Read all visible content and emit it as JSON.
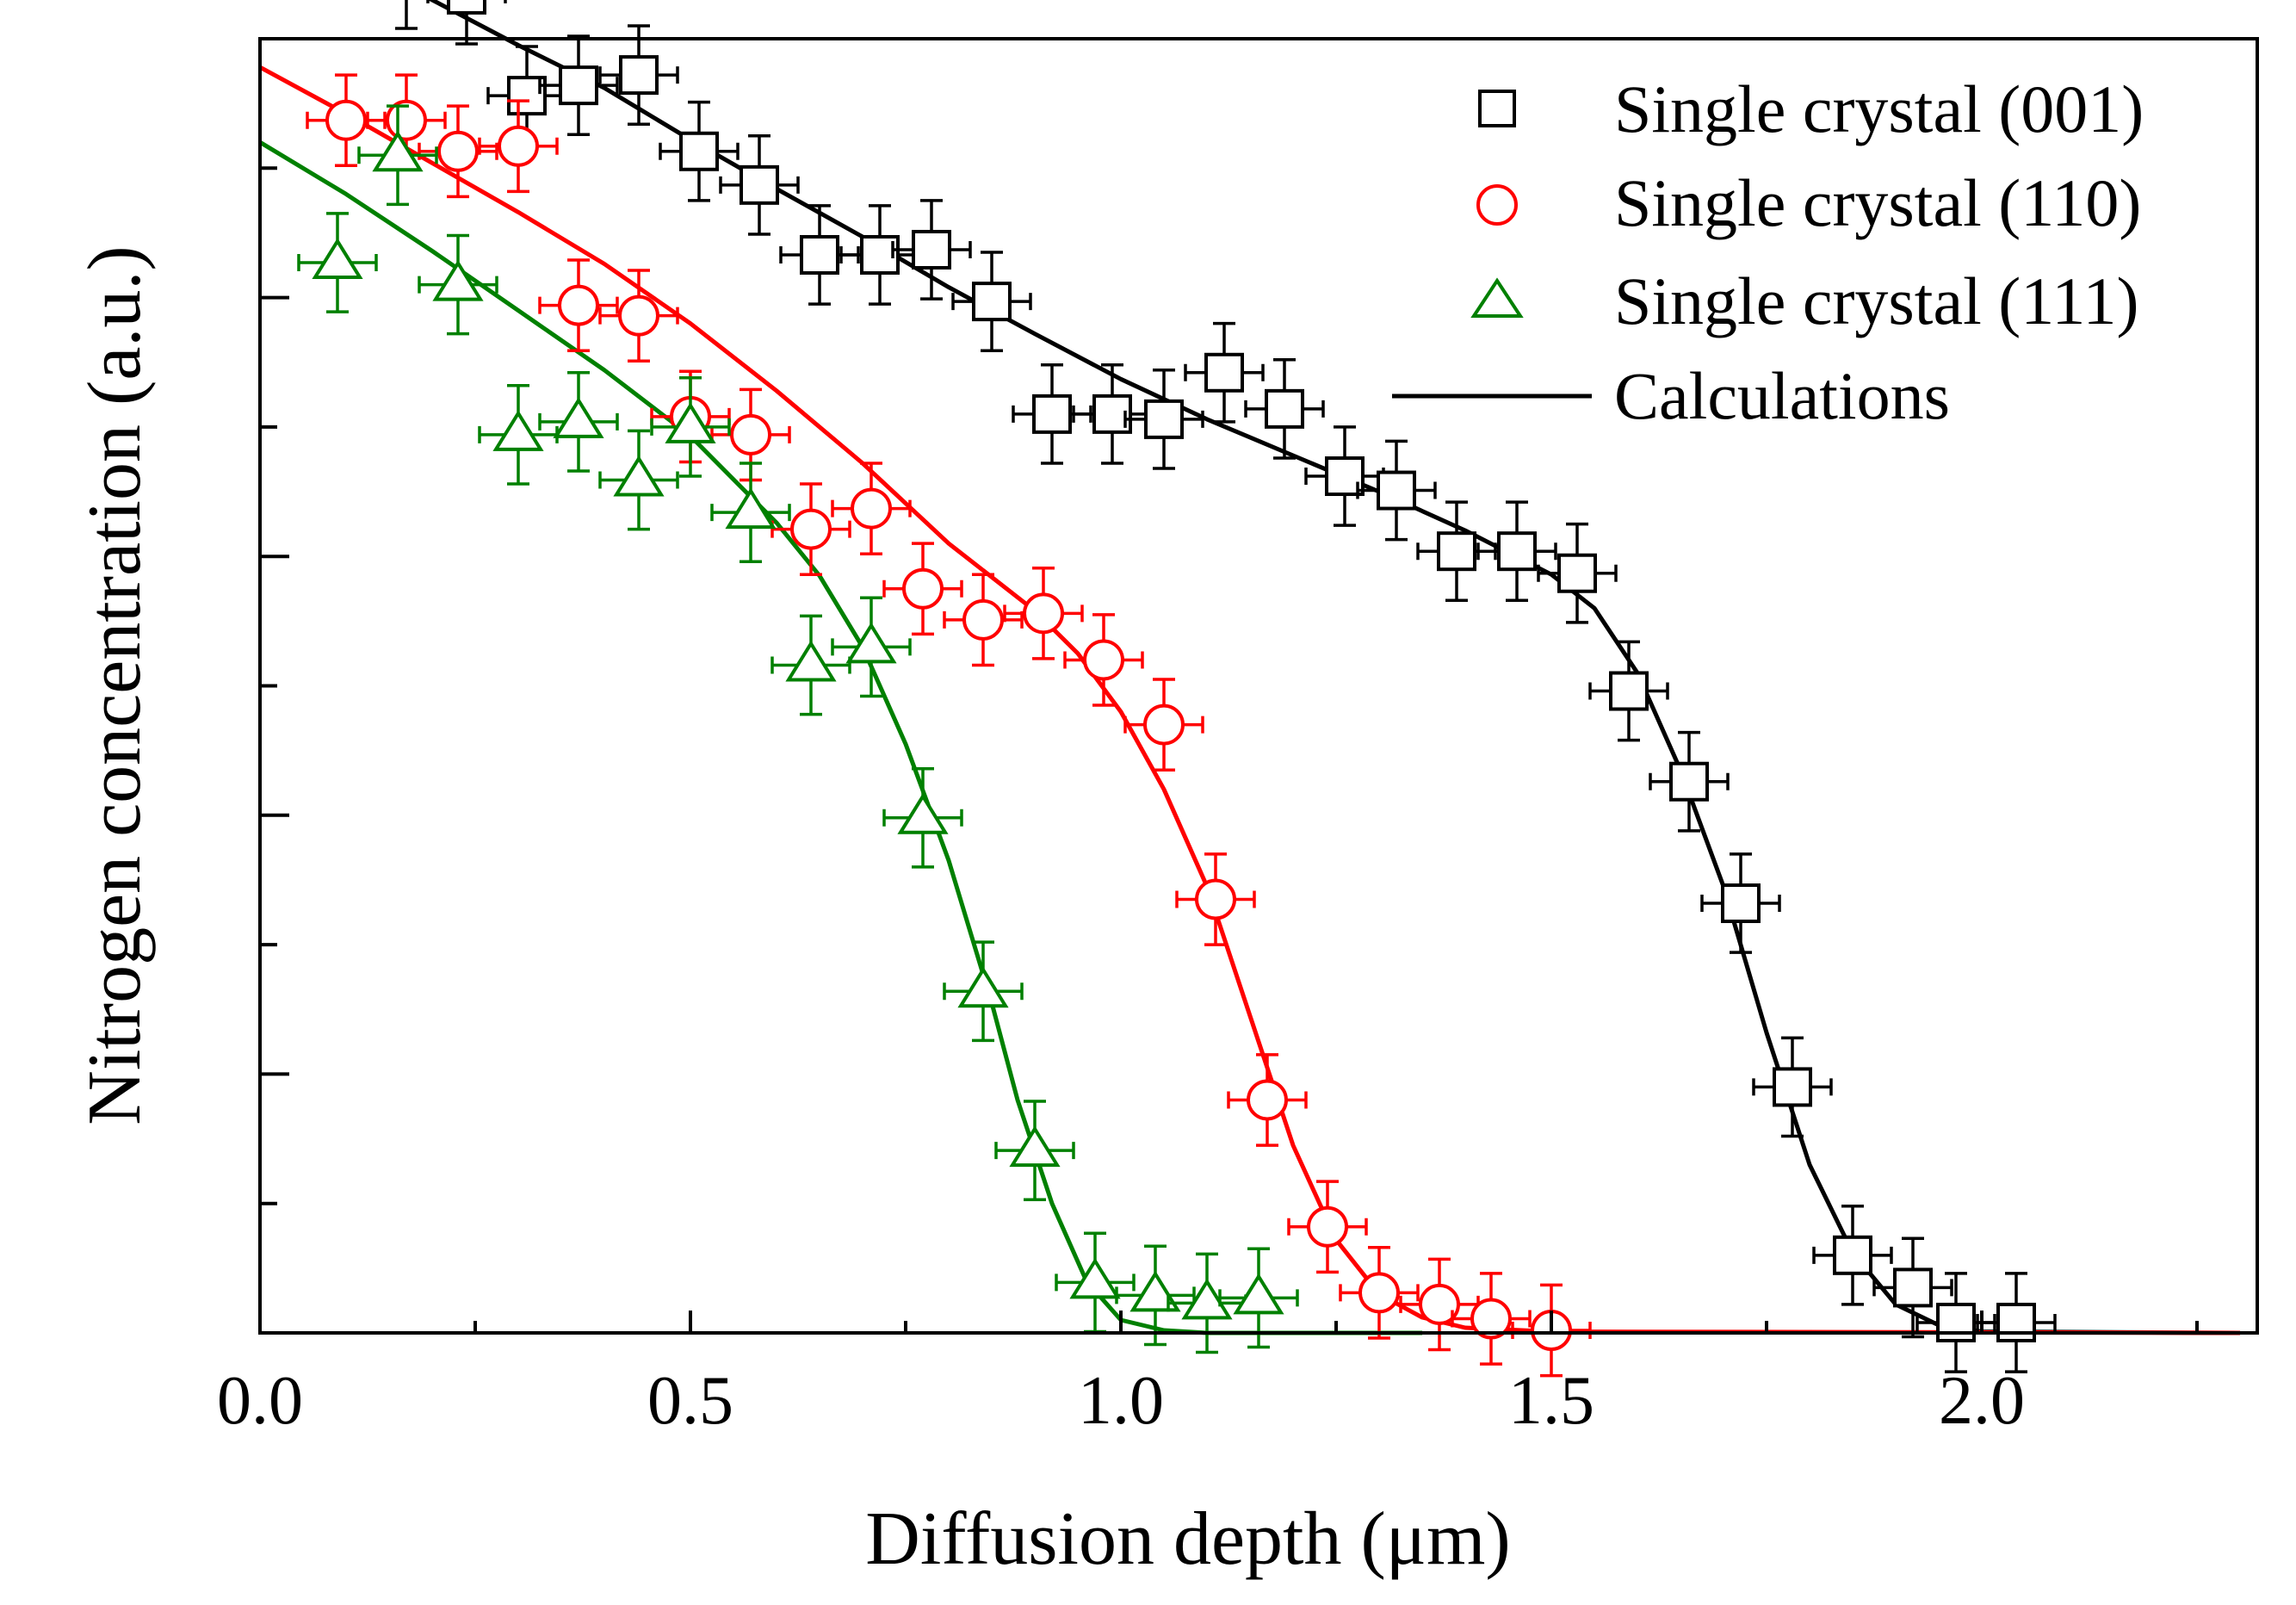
{
  "chart_data": {
    "type": "scatter",
    "title": "",
    "xlabel": "Diffusion depth (μm)",
    "ylabel": "Nitrogen concentration (a.u.)",
    "xlim": [
      0.0,
      2.32
    ],
    "ylim": [
      0,
      1.0
    ],
    "x_ticks": [
      0.0,
      0.5,
      1.0,
      1.5,
      2.0
    ],
    "x_tick_labels": [
      "0.0",
      "0.5",
      "1.0",
      "1.5",
      "2.0"
    ],
    "y_ticks": [
      0.1,
      0.2,
      0.3,
      0.4,
      0.5,
      0.6,
      0.7,
      0.8,
      0.9,
      1.0
    ],
    "y_tick_labels_visible": false,
    "legend_position": "top-right",
    "x_error": 0.045,
    "series": [
      {
        "name": "Single crystal (001)",
        "marker": "square",
        "color": "#000000",
        "y_error": 0.038,
        "points": [
          [
            0.17,
            1.046
          ],
          [
            0.24,
            1.034
          ],
          [
            0.31,
            0.956
          ],
          [
            0.37,
            0.964
          ],
          [
            0.44,
            0.972
          ],
          [
            0.51,
            0.913
          ],
          [
            0.58,
            0.887
          ],
          [
            0.65,
            0.833
          ],
          [
            0.72,
            0.833
          ],
          [
            0.78,
            0.837
          ],
          [
            0.85,
            0.797
          ],
          [
            0.92,
            0.71
          ],
          [
            0.99,
            0.71
          ],
          [
            1.05,
            0.706
          ],
          [
            1.12,
            0.742
          ],
          [
            1.19,
            0.714
          ],
          [
            1.26,
            0.662
          ],
          [
            1.32,
            0.651
          ],
          [
            1.39,
            0.604
          ],
          [
            1.46,
            0.604
          ],
          [
            1.53,
            0.587
          ],
          [
            1.59,
            0.496
          ],
          [
            1.66,
            0.426
          ],
          [
            1.72,
            0.332
          ],
          [
            1.78,
            0.19
          ],
          [
            1.85,
            0.06
          ],
          [
            1.92,
            0.035
          ],
          [
            1.97,
            0.008
          ],
          [
            2.04,
            0.008
          ]
        ]
      },
      {
        "name": "Single crystal (110)",
        "marker": "circle",
        "color": "#ff0000",
        "y_error": 0.035,
        "points": [
          [
            0.1,
            0.937
          ],
          [
            0.17,
            0.937
          ],
          [
            0.23,
            0.913
          ],
          [
            0.3,
            0.917
          ],
          [
            0.37,
            0.794
          ],
          [
            0.44,
            0.786
          ],
          [
            0.5,
            0.708
          ],
          [
            0.57,
            0.694
          ],
          [
            0.64,
            0.621
          ],
          [
            0.71,
            0.637
          ],
          [
            0.77,
            0.575
          ],
          [
            0.84,
            0.551
          ],
          [
            0.91,
            0.556
          ],
          [
            0.98,
            0.52
          ],
          [
            1.05,
            0.47
          ],
          [
            1.11,
            0.335
          ],
          [
            1.17,
            0.18
          ],
          [
            1.24,
            0.082
          ],
          [
            1.3,
            0.031
          ],
          [
            1.37,
            0.022
          ],
          [
            1.43,
            0.011
          ],
          [
            1.5,
            0.002
          ]
        ]
      },
      {
        "name": "Single crystal (111)",
        "marker": "triangle",
        "color": "#008000",
        "y_error": 0.038,
        "points": [
          [
            0.09,
            0.827
          ],
          [
            0.16,
            0.91
          ],
          [
            0.23,
            0.81
          ],
          [
            0.3,
            0.694
          ],
          [
            0.37,
            0.704
          ],
          [
            0.44,
            0.659
          ],
          [
            0.5,
            0.7
          ],
          [
            0.57,
            0.634
          ],
          [
            0.64,
            0.516
          ],
          [
            0.71,
            0.53
          ],
          [
            0.77,
            0.398
          ],
          [
            0.84,
            0.264
          ],
          [
            0.9,
            0.141
          ],
          [
            0.97,
            0.039
          ],
          [
            1.04,
            0.029
          ],
          [
            1.1,
            0.023
          ],
          [
            1.16,
            0.027
          ]
        ]
      }
    ],
    "calculations": {
      "name": "Calculations",
      "curves": [
        {
          "color": "#000000",
          "points": [
            [
              0.0,
              1.088
            ],
            [
              0.1,
              1.061
            ],
            [
              0.2,
              1.03
            ],
            [
              0.3,
              0.995
            ],
            [
              0.4,
              0.962
            ],
            [
              0.5,
              0.922
            ],
            [
              0.6,
              0.884
            ],
            [
              0.7,
              0.847
            ],
            [
              0.8,
              0.808
            ],
            [
              0.9,
              0.772
            ],
            [
              1.0,
              0.737
            ],
            [
              1.1,
              0.706
            ],
            [
              1.2,
              0.678
            ],
            [
              1.3,
              0.65
            ],
            [
              1.4,
              0.62
            ],
            [
              1.5,
              0.586
            ],
            [
              1.55,
              0.56
            ],
            [
              1.6,
              0.51
            ],
            [
              1.65,
              0.435
            ],
            [
              1.7,
              0.345
            ],
            [
              1.75,
              0.232
            ],
            [
              1.8,
              0.13
            ],
            [
              1.85,
              0.062
            ],
            [
              1.9,
              0.022
            ],
            [
              1.95,
              0.006
            ],
            [
              2.0,
              0.001
            ],
            [
              2.3,
              0.0
            ]
          ]
        },
        {
          "color": "#ff0000",
          "points": [
            [
              0.0,
              0.978
            ],
            [
              0.1,
              0.942
            ],
            [
              0.2,
              0.904
            ],
            [
              0.3,
              0.866
            ],
            [
              0.4,
              0.826
            ],
            [
              0.5,
              0.78
            ],
            [
              0.6,
              0.728
            ],
            [
              0.7,
              0.672
            ],
            [
              0.8,
              0.61
            ],
            [
              0.9,
              0.558
            ],
            [
              0.95,
              0.525
            ],
            [
              1.0,
              0.48
            ],
            [
              1.05,
              0.42
            ],
            [
              1.1,
              0.345
            ],
            [
              1.15,
              0.245
            ],
            [
              1.2,
              0.145
            ],
            [
              1.25,
              0.072
            ],
            [
              1.3,
              0.03
            ],
            [
              1.35,
              0.012
            ],
            [
              1.4,
              0.004
            ],
            [
              1.5,
              0.001
            ],
            [
              2.3,
              0.0
            ]
          ]
        },
        {
          "color": "#008000",
          "points": [
            [
              0.0,
              0.92
            ],
            [
              0.1,
              0.88
            ],
            [
              0.2,
              0.836
            ],
            [
              0.3,
              0.79
            ],
            [
              0.4,
              0.744
            ],
            [
              0.5,
              0.693
            ],
            [
              0.6,
              0.626
            ],
            [
              0.65,
              0.585
            ],
            [
              0.7,
              0.53
            ],
            [
              0.75,
              0.455
            ],
            [
              0.8,
              0.365
            ],
            [
              0.85,
              0.255
            ],
            [
              0.88,
              0.18
            ],
            [
              0.92,
              0.1
            ],
            [
              0.96,
              0.04
            ],
            [
              1.0,
              0.01
            ],
            [
              1.05,
              0.002
            ],
            [
              1.1,
              0.0
            ],
            [
              1.35,
              0.0
            ]
          ]
        }
      ]
    }
  }
}
